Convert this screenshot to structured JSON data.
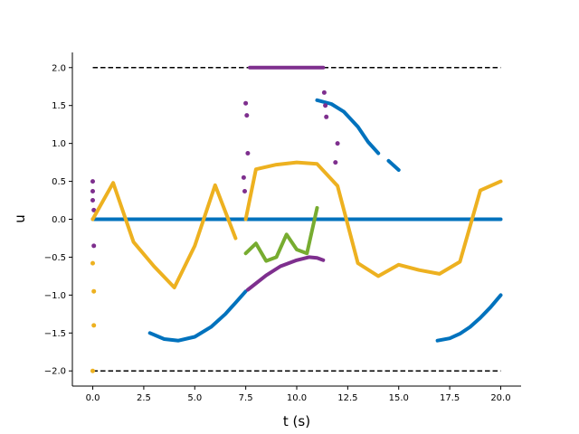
{
  "chart_data": {
    "type": "scatter",
    "title": "",
    "xlabel": "t (s)",
    "ylabel": "u",
    "xlim": [
      -1.0,
      21.0
    ],
    "ylim": [
      -2.2,
      2.2
    ],
    "xticks": [
      0.0,
      2.5,
      5.0,
      7.5,
      10.0,
      12.5,
      15.0,
      17.5,
      20.0
    ],
    "xtick_labels": [
      "0.0",
      "2.5",
      "5.0",
      "7.5",
      "10.0",
      "12.5",
      "15.0",
      "17.5",
      "20.0"
    ],
    "yticks": [
      -2.0,
      -1.5,
      -1.0,
      -0.5,
      0.0,
      0.5,
      1.0,
      1.5,
      2.0
    ],
    "ytick_labels": [
      "−2.0",
      "−1.5",
      "−1.0",
      "−0.5",
      "0.0",
      "0.5",
      "1.0",
      "1.5",
      "2.0"
    ],
    "grid": false,
    "legend": "none",
    "reference_lines": [
      {
        "name": "upper-bound",
        "y": 2.0,
        "x": [
          0.0,
          20.0
        ],
        "style": "dashed",
        "color": "#000000"
      },
      {
        "name": "lower-bound",
        "y": -2.0,
        "x": [
          0.0,
          20.0
        ],
        "style": "dashed",
        "color": "#000000"
      }
    ],
    "series": [
      {
        "name": "blue",
        "color": "#0072bd",
        "segments": [
          {
            "x": [
              0.0,
              20.0
            ],
            "y": [
              0.0,
              0.0
            ]
          },
          {
            "x": [
              2.8,
              3.5,
              4.2,
              5.0,
              5.8,
              6.5,
              7.0,
              7.5
            ],
            "y": [
              -1.5,
              -1.58,
              -1.6,
              -1.55,
              -1.42,
              -1.25,
              -1.1,
              -0.95
            ]
          },
          {
            "x": [
              11.0,
              11.7,
              12.3,
              13.0,
              13.5,
              14.0
            ],
            "y": [
              1.57,
              1.52,
              1.42,
              1.22,
              1.02,
              0.87
            ]
          },
          {
            "x": [
              14.5,
              15.0
            ],
            "y": [
              0.77,
              0.65
            ]
          },
          {
            "x": [
              16.9,
              17.5,
              18.0,
              18.5,
              19.0,
              19.5,
              20.0
            ],
            "y": [
              -1.6,
              -1.57,
              -1.51,
              -1.42,
              -1.3,
              -1.16,
              -1.0
            ]
          }
        ]
      },
      {
        "name": "purple",
        "color": "#7e2f8e",
        "segments": [
          {
            "x": [
              7.6,
              8.5,
              9.2,
              10.0,
              10.6,
              11.0,
              11.3
            ],
            "y": [
              -0.93,
              -0.74,
              -0.62,
              -0.54,
              -0.5,
              -0.51,
              -0.54
            ]
          },
          {
            "x": [
              7.7,
              9.0,
              10.3,
              11.3
            ],
            "y": [
              2.0,
              2.0,
              2.0,
              2.0
            ]
          }
        ],
        "scatter": {
          "x": [
            0.0,
            0.0,
            0.0,
            0.05,
            0.05,
            7.5,
            7.55,
            7.6,
            7.4,
            7.45,
            11.35,
            11.4,
            11.45,
            12.0,
            11.9
          ],
          "y": [
            0.5,
            0.37,
            0.25,
            0.12,
            -0.35,
            1.53,
            1.37,
            0.87,
            0.55,
            0.37,
            1.67,
            1.5,
            1.35,
            1.0,
            0.75
          ]
        }
      },
      {
        "name": "green",
        "color": "#77ac30",
        "segments": [
          {
            "x": [
              7.5,
              8.0,
              8.5,
              9.0,
              9.5,
              10.0,
              10.5,
              11.0
            ],
            "y": [
              -0.45,
              -0.32,
              -0.55,
              -0.5,
              -0.2,
              -0.4,
              -0.45,
              0.15
            ]
          }
        ]
      },
      {
        "name": "yellow",
        "color": "#edb120",
        "segments": [
          {
            "x": [
              0.0,
              1.0,
              2.0,
              3.0,
              4.0,
              5.0,
              6.0,
              7.0
            ],
            "y": [
              0.0,
              0.48,
              -0.3,
              -0.62,
              -0.9,
              -0.35,
              0.45,
              -0.25
            ]
          },
          {
            "x": [
              7.5,
              8.0,
              9.0,
              10.0,
              11.0,
              12.0,
              13.0,
              14.0,
              15.0,
              16.0,
              17.0,
              18.0,
              19.0,
              20.0
            ],
            "y": [
              0.0,
              0.66,
              0.72,
              0.75,
              0.73,
              0.44,
              -0.58,
              -0.75,
              -0.6,
              -0.67,
              -0.72,
              -0.56,
              0.38,
              0.5
            ]
          }
        ],
        "scatter": {
          "x": [
            0.0,
            0.05,
            0.05,
            0.0
          ],
          "y": [
            -2.0,
            -1.4,
            -0.95,
            -0.58
          ]
        }
      }
    ]
  }
}
